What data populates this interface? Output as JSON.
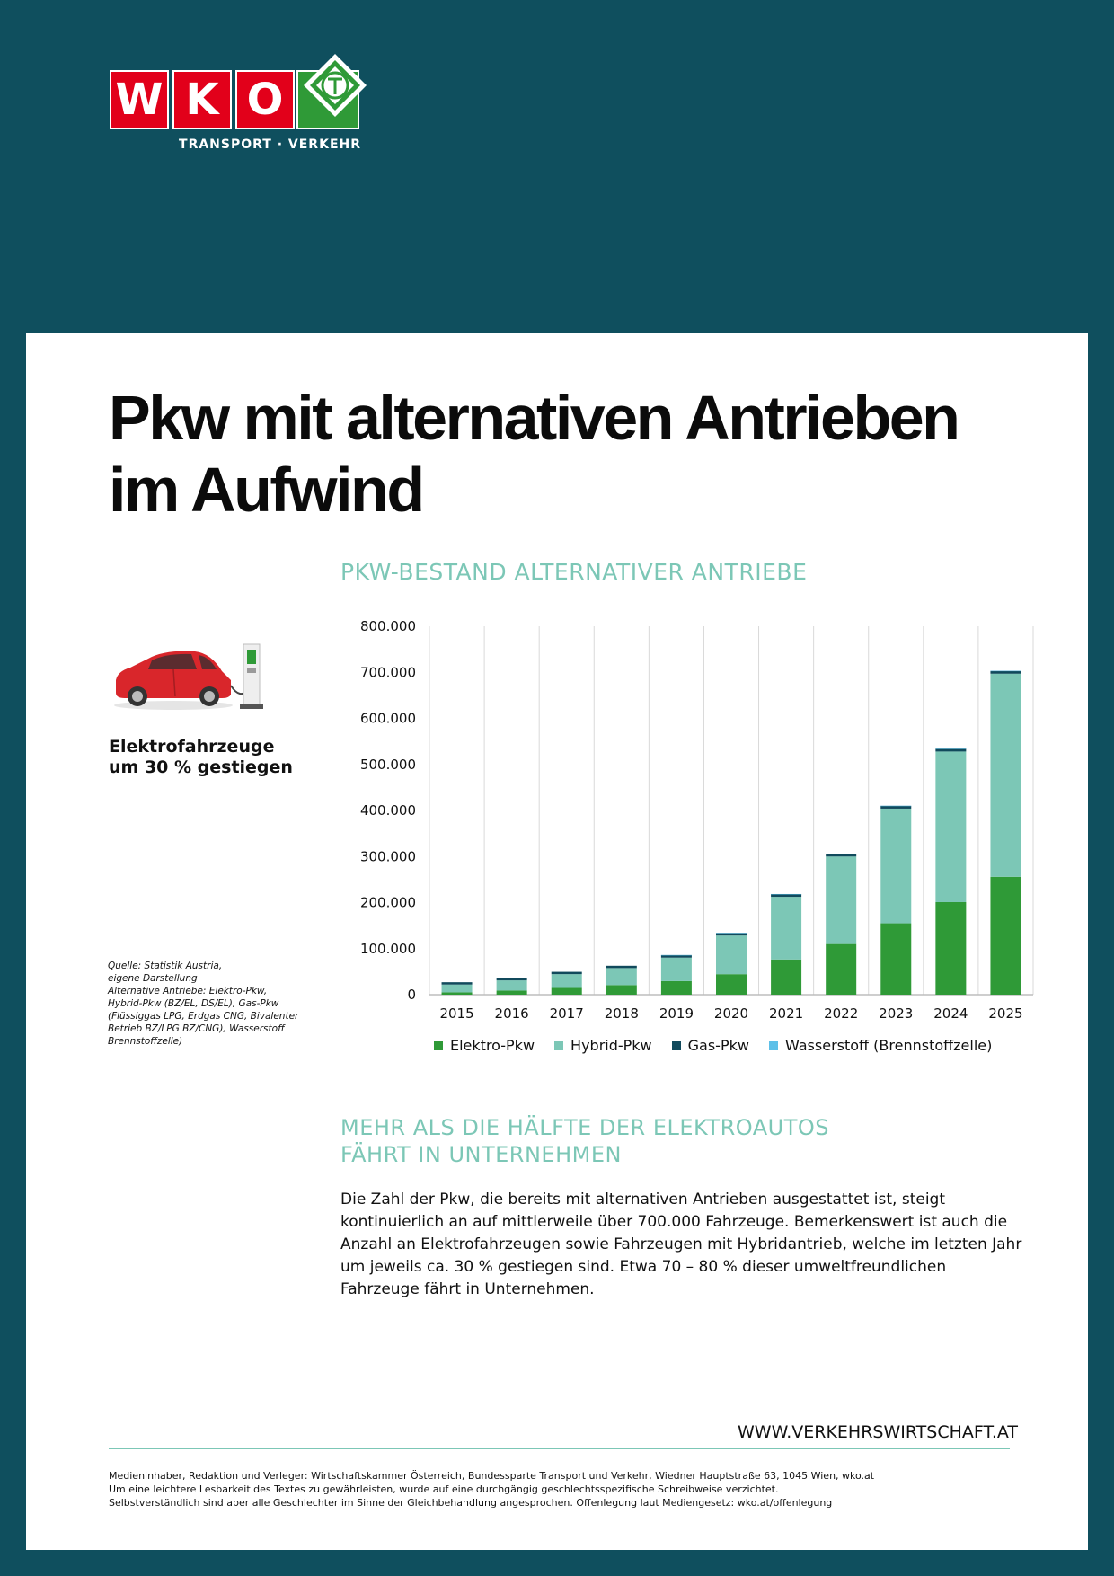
{
  "logo": {
    "letters": [
      "W",
      "K",
      "O"
    ],
    "tagline": "TRANSPORT · VERKEHR"
  },
  "headline": "Pkw mit alternativen Antrieben im Aufwind",
  "chart_title": "PKW-BESTAND ALTERNATIVER ANTRIEBE",
  "side_note": "Elektrofahrzeuge um 30 % gestiegen",
  "source_lines": [
    "Quelle: Statistik Austria,",
    "eigene Darstellung",
    "Alternative Antriebe: Elektro-Pkw,",
    "Hybrid-Pkw (BZ/EL, DS/EL), Gas-Pkw",
    "(Flüssiggas LPG, Erdgas CNG, Bivalenter",
    "Betrieb BZ/LPG BZ/CNG), Wasserstoff",
    "Brennstoffzelle)"
  ],
  "colors": {
    "background": "#0f4f5e",
    "elektro": "#2f9a37",
    "hybrid": "#7cc7b6",
    "gas": "#114a5c",
    "wasserstoff": "#5ec0e8",
    "accent": "#7cc7b6"
  },
  "chart_data": {
    "type": "bar",
    "stacked": true,
    "categories": [
      "2015",
      "2016",
      "2017",
      "2018",
      "2019",
      "2020",
      "2021",
      "2022",
      "2023",
      "2024",
      "2025"
    ],
    "series": [
      {
        "name": "Elektro-Pkw",
        "color": "#2f9a37",
        "values": [
          5000,
          9000,
          14600,
          20800,
          29500,
          44500,
          76500,
          110000,
          155000,
          201000,
          256000
        ]
      },
      {
        "name": "Hybrid-Pkw",
        "color": "#7cc7b6",
        "values": [
          17000,
          22000,
          30000,
          37000,
          51000,
          84000,
          136000,
          190000,
          249000,
          327000,
          441000
        ]
      },
      {
        "name": "Gas-Pkw",
        "color": "#114a5c",
        "values": [
          5000,
          5000,
          5000,
          5000,
          5500,
          5500,
          6000,
          6000,
          6000,
          6000,
          6000
        ]
      },
      {
        "name": "Wasserstoff (Brennstoffzelle)",
        "color": "#5ec0e8",
        "values": [
          0,
          0,
          0,
          0,
          100,
          100,
          100,
          100,
          200,
          200,
          200
        ]
      }
    ],
    "y_ticks": [
      "800.000",
      "700.000",
      "600.000",
      "500.000",
      "400.000",
      "300.000",
      "200.000",
      "100.000",
      "0"
    ],
    "ylim": [
      0,
      800000
    ],
    "grid": "vertical",
    "legend": "bottom"
  },
  "section2_title_lines": [
    "MEHR ALS DIE HÄLFTE DER ELEKTROAUTOS",
    "FÄHRT IN UNTERNEHMEN"
  ],
  "body_text": "Die Zahl der Pkw, die bereits mit alternativen Antrieben ausgestattet ist, steigt kontinuierlich an auf mittlerweile über 700.000 Fahrzeuge. Bemerkenswert ist auch die Anzahl an Elektrofahrzeugen sowie Fahrzeugen mit Hybridantrieb, welche im letzten Jahr um jeweils ca. 30 % gestiegen sind. Etwa 70 – 80 % dieser umweltfreundlichen Fahrzeuge fährt in Unternehmen.",
  "website": "WWW.VERKEHRSWIRTSCHAFT.AT",
  "imprint_lines": [
    "Medieninhaber, Redaktion und Verleger: Wirtschaftskammer Österreich, Bundessparte Transport und Verkehr, Wiedner Hauptstraße 63, 1045 Wien, wko.at",
    "Um eine leichtere Lesbarkeit des Textes zu gewährleisten, wurde auf eine durchgängig geschlechtsspezifische Schreibweise verzichtet.",
    "Selbstverständlich sind aber alle Geschlechter im Sinne der Gleichbehandlung angesprochen. Offenlegung laut Mediengesetz: wko.at/offenlegung"
  ]
}
